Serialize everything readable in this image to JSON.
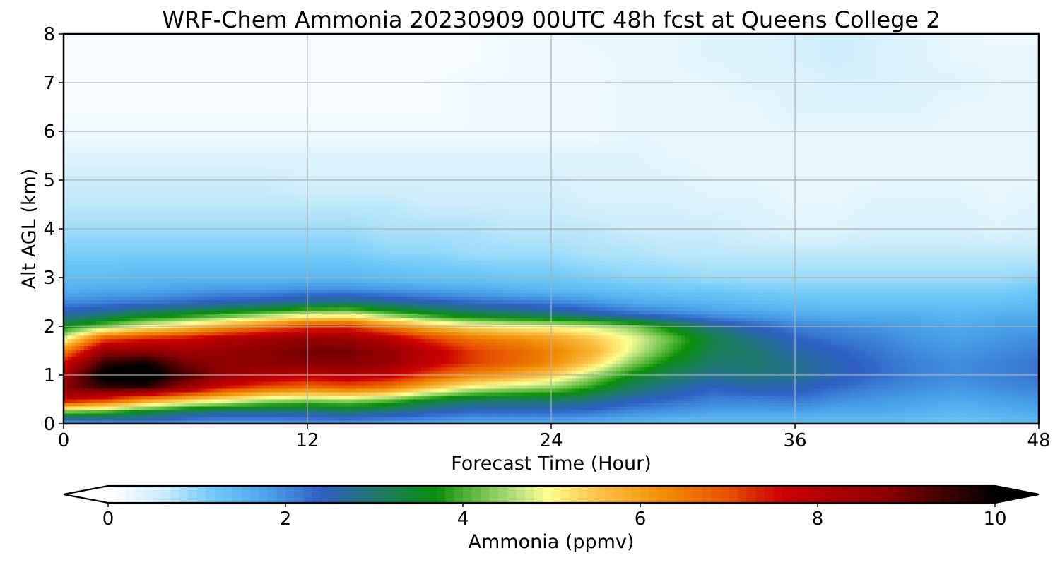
{
  "chart_data": {
    "type": "heatmap",
    "title": "WRF-Chem Ammonia  20230909 00UTC 48h fcst at Queens College 2",
    "xlabel": "Forecast Time (Hour)",
    "ylabel": "Alt AGL (km)",
    "xlim": [
      0,
      48
    ],
    "ylim": [
      0,
      8
    ],
    "xticks": [
      0,
      12,
      24,
      36,
      48
    ],
    "xtick_labels": [
      "0",
      "12",
      "24",
      "36",
      "48"
    ],
    "yticks": [
      0,
      1,
      2,
      3,
      4,
      5,
      6,
      7,
      8
    ],
    "ytick_labels": [
      "0",
      "1",
      "2",
      "3",
      "4",
      "5",
      "6",
      "7",
      "8"
    ],
    "grid": true,
    "colorbar": {
      "label": "Ammonia  (ppmv)",
      "range": [
        0,
        10
      ],
      "ticks": [
        0,
        2,
        4,
        6,
        8,
        10
      ],
      "tick_labels": [
        "0",
        "2",
        "4",
        "6",
        "8",
        "10"
      ],
      "extend": "both",
      "colors": [
        {
          "v": 0.0,
          "c": "#ffffff"
        },
        {
          "v": 0.6,
          "c": "#cdeefc"
        },
        {
          "v": 1.2,
          "c": "#6cc8f6"
        },
        {
          "v": 1.8,
          "c": "#4aa3ea"
        },
        {
          "v": 2.4,
          "c": "#2f5fc4"
        },
        {
          "v": 3.0,
          "c": "#1f7a70"
        },
        {
          "v": 3.7,
          "c": "#0a8f0a"
        },
        {
          "v": 4.1,
          "c": "#5aba3a"
        },
        {
          "v": 4.6,
          "c": "#b8e080"
        },
        {
          "v": 4.95,
          "c": "#ffff8f"
        },
        {
          "v": 5.5,
          "c": "#fbc54a"
        },
        {
          "v": 6.3,
          "c": "#f08a00"
        },
        {
          "v": 7.0,
          "c": "#e85000"
        },
        {
          "v": 7.6,
          "c": "#cc0000"
        },
        {
          "v": 8.8,
          "c": "#8a0000"
        },
        {
          "v": 10.0,
          "c": "#000000"
        }
      ]
    },
    "field": {
      "x": [
        0,
        2,
        4,
        6,
        8,
        10,
        12,
        14,
        16,
        18,
        20,
        22,
        24,
        26,
        28,
        30,
        32,
        34,
        36,
        38,
        40,
        42,
        44,
        46,
        48
      ],
      "y": [
        0,
        0.25,
        0.5,
        0.75,
        1.0,
        1.25,
        1.5,
        1.75,
        2.0,
        2.25,
        2.5,
        2.75,
        3.0,
        3.5,
        4.0,
        4.5,
        5.0,
        5.5,
        6.0,
        6.5,
        7.0,
        7.5,
        8.0
      ],
      "z": [
        [
          1.6,
          1.8,
          1.9,
          1.8,
          1.7,
          1.7,
          1.8,
          1.8,
          1.7,
          1.7,
          1.6,
          1.6,
          1.6,
          1.5,
          1.4,
          1.3,
          1.3,
          1.3,
          1.3,
          1.3,
          1.3,
          1.3,
          1.2,
          1.3,
          1.4
        ],
        [
          4.2,
          4.0,
          3.5,
          3.0,
          2.8,
          2.8,
          2.8,
          3.0,
          2.8,
          2.5,
          2.3,
          2.3,
          2.3,
          2.2,
          2.0,
          1.9,
          1.8,
          1.8,
          1.8,
          1.7,
          1.7,
          1.6,
          1.5,
          1.6,
          1.7
        ],
        [
          7.8,
          7.2,
          6.2,
          5.6,
          5.1,
          4.6,
          4.4,
          4.5,
          4.2,
          3.6,
          3.2,
          3.1,
          3.1,
          2.9,
          2.5,
          2.3,
          2.1,
          2.1,
          2.2,
          2.0,
          1.9,
          1.8,
          1.7,
          1.8,
          1.9
        ],
        [
          8.8,
          9.5,
          9.6,
          8.5,
          7.4,
          6.9,
          6.6,
          6.8,
          6.5,
          5.6,
          4.9,
          4.6,
          4.4,
          3.8,
          3.1,
          2.7,
          2.4,
          2.6,
          2.5,
          2.3,
          2.1,
          2.0,
          1.9,
          2.0,
          2.1
        ],
        [
          8.4,
          10.2,
          10.4,
          9.4,
          8.6,
          8.2,
          7.9,
          8.1,
          7.8,
          7.0,
          6.3,
          5.9,
          5.4,
          4.5,
          3.6,
          3.1,
          2.8,
          2.9,
          2.8,
          2.5,
          2.3,
          2.1,
          2.0,
          2.1,
          2.2
        ],
        [
          7.6,
          9.6,
          9.9,
          9.0,
          8.7,
          8.7,
          8.8,
          8.8,
          8.5,
          7.8,
          7.2,
          6.8,
          6.3,
          5.4,
          4.3,
          3.5,
          3.0,
          3.0,
          2.8,
          2.5,
          2.3,
          2.1,
          2.0,
          2.1,
          2.2
        ],
        [
          6.3,
          8.6,
          8.7,
          8.4,
          8.6,
          8.8,
          9.0,
          9.0,
          8.6,
          7.9,
          7.2,
          6.8,
          6.4,
          5.8,
          4.8,
          3.9,
          3.2,
          3.0,
          2.6,
          2.4,
          2.2,
          2.0,
          1.9,
          2.0,
          2.1
        ],
        [
          4.8,
          7.0,
          7.4,
          7.6,
          8.1,
          8.4,
          8.6,
          8.5,
          8.0,
          7.2,
          6.6,
          6.3,
          6.0,
          5.5,
          4.9,
          4.1,
          3.3,
          2.8,
          2.4,
          2.2,
          2.1,
          1.9,
          1.8,
          1.9,
          2.0
        ],
        [
          3.6,
          4.3,
          4.9,
          5.4,
          6.0,
          6.6,
          7.1,
          7.2,
          6.4,
          5.7,
          5.2,
          5.0,
          4.9,
          4.7,
          4.3,
          3.5,
          2.8,
          2.4,
          2.1,
          2.0,
          1.9,
          1.8,
          1.7,
          1.8,
          1.8
        ],
        [
          2.6,
          2.9,
          3.3,
          3.6,
          3.9,
          4.3,
          4.7,
          4.8,
          4.2,
          3.7,
          3.3,
          3.1,
          2.9,
          2.6,
          2.3,
          2.1,
          1.9,
          1.8,
          1.7,
          1.6,
          1.6,
          1.6,
          1.5,
          1.6,
          1.6
        ],
        [
          2.0,
          2.1,
          2.2,
          2.3,
          2.5,
          2.6,
          2.8,
          2.9,
          2.7,
          2.5,
          2.3,
          2.2,
          2.1,
          1.9,
          1.7,
          1.6,
          1.5,
          1.4,
          1.3,
          1.3,
          1.3,
          1.3,
          1.3,
          1.3,
          1.4
        ],
        [
          1.6,
          1.7,
          1.7,
          1.8,
          1.9,
          1.9,
          2.0,
          2.0,
          1.9,
          1.8,
          1.7,
          1.6,
          1.5,
          1.4,
          1.3,
          1.2,
          1.2,
          1.1,
          1.1,
          1.1,
          1.1,
          1.1,
          1.1,
          1.1,
          1.2
        ],
        [
          1.4,
          1.4,
          1.5,
          1.5,
          1.5,
          1.5,
          1.5,
          1.5,
          1.4,
          1.3,
          1.3,
          1.2,
          1.2,
          1.1,
          1.0,
          1.0,
          0.9,
          0.9,
          0.9,
          0.9,
          0.9,
          0.9,
          0.9,
          0.9,
          1.0
        ],
        [
          1.1,
          1.1,
          1.1,
          1.1,
          1.1,
          1.1,
          1.1,
          1.1,
          1.0,
          1.0,
          0.9,
          0.9,
          0.9,
          0.8,
          0.8,
          0.7,
          0.7,
          0.7,
          0.7,
          0.7,
          0.7,
          0.7,
          0.7,
          0.7,
          0.7
        ],
        [
          0.9,
          0.9,
          0.9,
          0.9,
          0.9,
          0.9,
          0.9,
          0.9,
          0.8,
          0.8,
          0.8,
          0.7,
          0.7,
          0.7,
          0.6,
          0.6,
          0.6,
          0.5,
          0.4,
          0.4,
          0.5,
          0.5,
          0.5,
          0.4,
          0.5
        ],
        [
          0.7,
          0.7,
          0.7,
          0.7,
          0.7,
          0.7,
          0.7,
          0.7,
          0.7,
          0.6,
          0.6,
          0.6,
          0.6,
          0.5,
          0.5,
          0.5,
          0.4,
          0.4,
          0.3,
          0.3,
          0.4,
          0.4,
          0.4,
          0.3,
          0.4
        ],
        [
          0.6,
          0.6,
          0.6,
          0.6,
          0.6,
          0.6,
          0.5,
          0.5,
          0.5,
          0.5,
          0.5,
          0.5,
          0.5,
          0.4,
          0.4,
          0.4,
          0.3,
          0.3,
          0.3,
          0.3,
          0.3,
          0.3,
          0.3,
          0.3,
          0.3
        ],
        [
          0.4,
          0.4,
          0.4,
          0.4,
          0.4,
          0.4,
          0.4,
          0.4,
          0.4,
          0.4,
          0.4,
          0.4,
          0.4,
          0.4,
          0.4,
          0.3,
          0.3,
          0.3,
          0.3,
          0.3,
          0.3,
          0.3,
          0.3,
          0.3,
          0.3
        ],
        [
          0.2,
          0.2,
          0.2,
          0.2,
          0.2,
          0.2,
          0.2,
          0.2,
          0.2,
          0.2,
          0.2,
          0.2,
          0.2,
          0.2,
          0.3,
          0.3,
          0.3,
          0.3,
          0.3,
          0.3,
          0.3,
          0.3,
          0.3,
          0.3,
          0.3
        ],
        [
          0.1,
          0.1,
          0.1,
          0.1,
          0.1,
          0.1,
          0.1,
          0.1,
          0.1,
          0.1,
          0.2,
          0.2,
          0.2,
          0.2,
          0.3,
          0.3,
          0.3,
          0.3,
          0.4,
          0.4,
          0.4,
          0.4,
          0.3,
          0.3,
          0.3
        ],
        [
          0.1,
          0.1,
          0.1,
          0.1,
          0.1,
          0.1,
          0.1,
          0.1,
          0.1,
          0.1,
          0.2,
          0.2,
          0.2,
          0.2,
          0.3,
          0.3,
          0.3,
          0.4,
          0.4,
          0.5,
          0.5,
          0.4,
          0.4,
          0.3,
          0.3
        ],
        [
          0.1,
          0.1,
          0.1,
          0.1,
          0.1,
          0.1,
          0.1,
          0.1,
          0.1,
          0.1,
          0.1,
          0.2,
          0.2,
          0.2,
          0.3,
          0.3,
          0.4,
          0.4,
          0.5,
          0.6,
          0.5,
          0.4,
          0.3,
          0.3,
          0.3
        ],
        [
          0.1,
          0.1,
          0.1,
          0.1,
          0.1,
          0.1,
          0.1,
          0.1,
          0.1,
          0.1,
          0.1,
          0.2,
          0.2,
          0.3,
          0.3,
          0.3,
          0.4,
          0.4,
          0.5,
          0.6,
          0.5,
          0.4,
          0.3,
          0.2,
          0.2
        ]
      ]
    }
  }
}
